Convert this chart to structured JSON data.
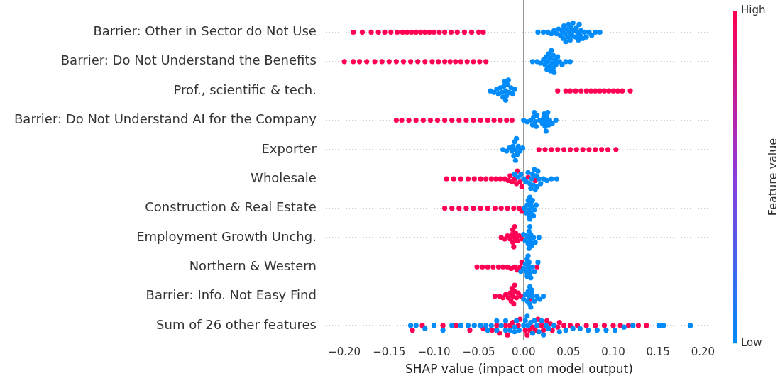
{
  "chart_data": {
    "type": "scatter",
    "orientation": "horizontal",
    "xlabel": "SHAP value (impact on model output)",
    "clabel": "Feature value",
    "clim": [
      0,
      1
    ],
    "cticks": [
      {
        "value": 0,
        "label": "Low"
      },
      {
        "value": 1,
        "label": "High"
      }
    ],
    "categories": [
      "Barrier: Other in Sector do Not Use",
      "Barrier: Do Not Understand the Benefits",
      "Prof., scientific & tech.",
      "Barrier: Do Not Understand AI for the Company",
      "Exporter",
      "Wholesale",
      "Construction & Real Estate",
      "Employment Growth Unchg.",
      "Northern & Western",
      "Barrier: Info. Not Easy Find",
      "Sum of 26 other features"
    ],
    "xlim": [
      -0.22,
      0.21
    ],
    "xticks": [
      {
        "value": -0.2,
        "label": "−0.20"
      },
      {
        "value": -0.15,
        "label": "−0.15"
      },
      {
        "value": -0.1,
        "label": "−0.10"
      },
      {
        "value": -0.05,
        "label": "−0.05"
      },
      {
        "value": 0,
        "label": "0.00"
      },
      {
        "value": 0.05,
        "label": "0.05"
      },
      {
        "value": 0.1,
        "label": "0.10"
      },
      {
        "value": 0.15,
        "label": "0.15"
      },
      {
        "value": 0.2,
        "label": "0.20"
      }
    ],
    "grid": "y",
    "marker": "circle",
    "ref_lines": [
      {
        "axis": "x",
        "value": 0,
        "color": "#999999"
      }
    ],
    "series": [
      {
        "color": "#ff0052",
        "x": [
          "Barrier: Other in Sector do Not Use",
          "Barrier: Other in Sector do Not Use",
          "Barrier: Other in Sector do Not Use",
          "Barrier: Other in Sector do Not Use",
          "Barrier: Other in Sector do Not Use",
          "Barrier: Other in Sector do Not Use",
          "Barrier: Other in Sector do Not Use",
          "Barrier: Other in Sector do Not Use",
          "Barrier: Other in Sector do Not Use",
          "Barrier: Other in Sector do Not Use",
          "Barrier: Other in Sector do Not Use",
          "Barrier: Other in Sector do Not Use",
          "Barrier: Other in Sector do Not Use",
          "Barrier: Other in Sector do Not Use",
          "Barrier: Other in Sector do Not Use",
          "Barrier: Other in Sector do Not Use",
          "Barrier: Other in Sector do Not Use",
          "Barrier: Other in Sector do Not Use",
          "Barrier: Other in Sector do Not Use",
          "Barrier: Other in Sector do Not Use",
          "Barrier: Other in Sector do Not Use",
          "Barrier: Other in Sector do Not Use",
          "Barrier: Other in Sector do Not Use",
          "Barrier: Do Not Understand the Benefits",
          "Barrier: Do Not Understand the Benefits",
          "Barrier: Do Not Understand the Benefits",
          "Barrier: Do Not Understand the Benefits",
          "Barrier: Do Not Understand the Benefits",
          "Barrier: Do Not Understand the Benefits",
          "Barrier: Do Not Understand the Benefits",
          "Barrier: Do Not Understand the Benefits",
          "Barrier: Do Not Understand the Benefits",
          "Barrier: Do Not Understand the Benefits",
          "Barrier: Do Not Understand the Benefits",
          "Barrier: Do Not Understand the Benefits",
          "Barrier: Do Not Understand the Benefits",
          "Barrier: Do Not Understand the Benefits",
          "Barrier: Do Not Understand the Benefits",
          "Barrier: Do Not Understand the Benefits",
          "Barrier: Do Not Understand the Benefits",
          "Barrier: Do Not Understand the Benefits",
          "Barrier: Do Not Understand the Benefits",
          "Barrier: Do Not Understand the Benefits",
          "Barrier: Do Not Understand the Benefits",
          "Barrier: Do Not Understand the Benefits",
          "Prof., scientific & tech.",
          "Prof., scientific & tech.",
          "Prof., scientific & tech.",
          "Prof., scientific & tech.",
          "Prof., scientific & tech.",
          "Prof., scientific & tech.",
          "Prof., scientific & tech.",
          "Prof., scientific & tech.",
          "Prof., scientific & tech.",
          "Prof., scientific & tech.",
          "Prof., scientific & tech.",
          "Prof., scientific & tech.",
          "Prof., scientific & tech.",
          "Prof., scientific & tech.",
          "Prof., scientific & tech.",
          "Barrier: Do Not Understand AI for the Company",
          "Barrier: Do Not Understand AI for the Company",
          "Barrier: Do Not Understand AI for the Company",
          "Barrier: Do Not Understand AI for the Company",
          "Barrier: Do Not Understand AI for the Company",
          "Barrier: Do Not Understand AI for the Company",
          "Barrier: Do Not Understand AI for the Company",
          "Barrier: Do Not Understand AI for the Company",
          "Barrier: Do Not Understand AI for the Company",
          "Barrier: Do Not Understand AI for the Company",
          "Barrier: Do Not Understand AI for the Company",
          "Barrier: Do Not Understand AI for the Company",
          "Barrier: Do Not Understand AI for the Company",
          "Barrier: Do Not Understand AI for the Company",
          "Barrier: Do Not Understand AI for the Company",
          "Barrier: Do Not Understand AI for the Company",
          "Barrier: Do Not Understand AI for the Company",
          "Barrier: Do Not Understand AI for the Company",
          "Exporter",
          "Exporter",
          "Exporter",
          "Exporter",
          "Exporter",
          "Exporter",
          "Exporter",
          "Exporter",
          "Exporter",
          "Exporter",
          "Exporter",
          "Exporter",
          "Exporter",
          "Wholesale",
          "Wholesale",
          "Wholesale",
          "Wholesale",
          "Wholesale",
          "Wholesale",
          "Wholesale",
          "Wholesale",
          "Wholesale",
          "Wholesale",
          "Wholesale",
          "Wholesale",
          "Wholesale",
          "Wholesale",
          "Wholesale",
          "Wholesale",
          "Wholesale",
          "Wholesale",
          "Wholesale",
          "Wholesale",
          "Wholesale",
          "Construction & Real Estate",
          "Construction & Real Estate",
          "Construction & Real Estate",
          "Construction & Real Estate",
          "Construction & Real Estate",
          "Construction & Real Estate",
          "Construction & Real Estate",
          "Construction & Real Estate",
          "Construction & Real Estate",
          "Construction & Real Estate",
          "Construction & Real Estate",
          "Construction & Real Estate",
          "Construction & Real Estate",
          "Employment Growth Unchg.",
          "Employment Growth Unchg.",
          "Employment Growth Unchg.",
          "Employment Growth Unchg.",
          "Employment Growth Unchg.",
          "Employment Growth Unchg.",
          "Employment Growth Unchg.",
          "Employment Growth Unchg.",
          "Employment Growth Unchg.",
          "Employment Growth Unchg.",
          "Employment Growth Unchg.",
          "Employment Growth Unchg.",
          "Employment Growth Unchg.",
          "Employment Growth Unchg.",
          "Northern & Western",
          "Northern & Western",
          "Northern & Western",
          "Northern & Western",
          "Northern & Western",
          "Northern & Western",
          "Northern & Western",
          "Northern & Western",
          "Northern & Western",
          "Northern & Western",
          "Northern & Western",
          "Northern & Western",
          "Northern & Western",
          "Barrier: Info. Not Easy Find",
          "Barrier: Info. Not Easy Find",
          "Barrier: Info. Not Easy Find",
          "Barrier: Info. Not Easy Find",
          "Barrier: Info. Not Easy Find",
          "Barrier: Info. Not Easy Find",
          "Barrier: Info. Not Easy Find",
          "Barrier: Info. Not Easy Find",
          "Barrier: Info. Not Easy Find",
          "Barrier: Info. Not Easy Find",
          "Barrier: Info. Not Easy Find",
          "Barrier: Info. Not Easy Find",
          "Barrier: Info. Not Easy Find",
          "Barrier: Info. Not Easy Find",
          "Barrier: Info. Not Easy Find",
          "Barrier: Info. Not Easy Find",
          "Sum of 26 other features",
          "Sum of 26 other features",
          "Sum of 26 other features",
          "Sum of 26 other features",
          "Sum of 26 other features",
          "Sum of 26 other features",
          "Sum of 26 other features",
          "Sum of 26 other features",
          "Sum of 26 other features",
          "Sum of 26 other features",
          "Sum of 26 other features",
          "Sum of 26 other features",
          "Sum of 26 other features",
          "Sum of 26 other features",
          "Sum of 26 other features",
          "Sum of 26 other features",
          "Sum of 26 other features",
          "Sum of 26 other features",
          "Sum of 26 other features",
          "Sum of 26 other features",
          "Sum of 26 other features",
          "Sum of 26 other features",
          "Sum of 26 other features",
          "Sum of 26 other features",
          "Sum of 26 other features",
          "Sum of 26 other features",
          "Sum of 26 other features",
          "Sum of 26 other features",
          "Sum of 26 other features",
          "Sum of 26 other features",
          "Sum of 26 other features",
          "Sum of 26 other features",
          "Sum of 26 other features",
          "Sum of 26 other features",
          "Sum of 26 other features",
          "Sum of 26 other features",
          "Sum of 26 other features",
          "Sum of 26 other features",
          "Sum of 26 other features"
        ],
        "values": [
          -0.19,
          -0.18,
          -0.17,
          -0.162,
          -0.155,
          -0.148,
          -0.141,
          -0.135,
          -0.13,
          -0.125,
          -0.12,
          -0.115,
          -0.11,
          -0.105,
          -0.1,
          -0.094,
          -0.088,
          -0.081,
          -0.074,
          -0.066,
          -0.058,
          -0.05,
          -0.045,
          -0.2,
          -0.19,
          -0.183,
          -0.175,
          -0.166,
          -0.158,
          -0.15,
          -0.142,
          -0.134,
          -0.126,
          -0.118,
          -0.11,
          -0.102,
          -0.095,
          -0.088,
          -0.082,
          -0.076,
          -0.07,
          -0.063,
          -0.056,
          -0.049,
          -0.042,
          0.038,
          0.047,
          0.052,
          0.058,
          0.064,
          0.07,
          0.075,
          0.08,
          0.085,
          0.09,
          0.095,
          0.1,
          0.105,
          0.11,
          0.119,
          -0.142,
          -0.136,
          -0.128,
          -0.12,
          -0.112,
          -0.104,
          -0.096,
          -0.088,
          -0.08,
          -0.072,
          -0.064,
          -0.056,
          -0.048,
          -0.04,
          -0.033,
          -0.026,
          -0.019,
          -0.013,
          0.017,
          0.024,
          0.031,
          0.038,
          0.045,
          0.052,
          0.059,
          0.066,
          0.073,
          0.08,
          0.087,
          0.094,
          0.103,
          -0.086,
          -0.078,
          -0.07,
          -0.062,
          -0.055,
          -0.048,
          -0.042,
          -0.036,
          -0.031,
          -0.026,
          -0.021,
          -0.017,
          -0.013,
          -0.01,
          -0.007,
          -0.004,
          -0.002,
          -0.015,
          -0.008,
          0.005,
          0.013,
          -0.088,
          -0.08,
          -0.072,
          -0.064,
          -0.056,
          -0.048,
          -0.04,
          -0.032,
          -0.025,
          -0.018,
          -0.011,
          -0.005,
          -0.002,
          -0.025,
          -0.021,
          -0.018,
          -0.015,
          -0.013,
          -0.012,
          -0.011,
          -0.01,
          -0.009,
          -0.007,
          -0.005,
          -0.002,
          -0.012,
          -0.01,
          -0.052,
          -0.046,
          -0.04,
          -0.034,
          -0.028,
          -0.023,
          -0.018,
          -0.014,
          -0.01,
          -0.007,
          -0.004,
          -0.002,
          0.015,
          -0.032,
          -0.027,
          -0.023,
          -0.02,
          -0.017,
          -0.015,
          -0.013,
          -0.012,
          -0.011,
          -0.01,
          -0.008,
          -0.006,
          -0.003,
          -0.014,
          -0.01,
          0.008,
          -0.124,
          -0.113,
          -0.09,
          -0.075,
          -0.06,
          -0.045,
          -0.035,
          -0.027,
          -0.018,
          -0.012,
          -0.006,
          0.002,
          0.007,
          0.013,
          0.02,
          0.026,
          0.032,
          0.038,
          0.045,
          0.052,
          0.06,
          0.07,
          0.08,
          0.09,
          0.1,
          0.108,
          0.117,
          0.128,
          0.137,
          -0.02,
          0.01,
          0.03,
          -0.03,
          -0.015,
          -0.004,
          0.004,
          0.016,
          0.022,
          0.04
        ]
      },
      {
        "color": "#008bfb",
        "x": [
          "Barrier: Other in Sector do Not Use",
          "Barrier: Other in Sector do Not Use",
          "Barrier: Other in Sector do Not Use",
          "Barrier: Other in Sector do Not Use",
          "Barrier: Other in Sector do Not Use",
          "Barrier: Other in Sector do Not Use",
          "Barrier: Other in Sector do Not Use",
          "Barrier: Other in Sector do Not Use",
          "Barrier: Other in Sector do Not Use",
          "Barrier: Other in Sector do Not Use",
          "Barrier: Other in Sector do Not Use",
          "Barrier: Other in Sector do Not Use",
          "Barrier: Other in Sector do Not Use",
          "Barrier: Other in Sector do Not Use",
          "Barrier: Other in Sector do Not Use",
          "Barrier: Other in Sector do Not Use",
          "Barrier: Other in Sector do Not Use",
          "Barrier: Other in Sector do Not Use",
          "Barrier: Other in Sector do Not Use",
          "Barrier: Other in Sector do Not Use",
          "Barrier: Other in Sector do Not Use",
          "Barrier: Other in Sector do Not Use",
          "Barrier: Other in Sector do Not Use",
          "Barrier: Other in Sector do Not Use",
          "Barrier: Other in Sector do Not Use",
          "Barrier: Other in Sector do Not Use",
          "Barrier: Other in Sector do Not Use",
          "Barrier: Other in Sector do Not Use",
          "Barrier: Other in Sector do Not Use",
          "Barrier: Other in Sector do Not Use",
          "Barrier: Other in Sector do Not Use",
          "Barrier: Other in Sector do Not Use",
          "Barrier: Other in Sector do Not Use",
          "Barrier: Other in Sector do Not Use",
          "Barrier: Other in Sector do Not Use",
          "Barrier: Other in Sector do Not Use",
          "Barrier: Do Not Understand the Benefits",
          "Barrier: Do Not Understand the Benefits",
          "Barrier: Do Not Understand the Benefits",
          "Barrier: Do Not Understand the Benefits",
          "Barrier: Do Not Understand the Benefits",
          "Barrier: Do Not Understand the Benefits",
          "Barrier: Do Not Understand the Benefits",
          "Barrier: Do Not Understand the Benefits",
          "Barrier: Do Not Understand the Benefits",
          "Barrier: Do Not Understand the Benefits",
          "Barrier: Do Not Understand the Benefits",
          "Barrier: Do Not Understand the Benefits",
          "Barrier: Do Not Understand the Benefits",
          "Barrier: Do Not Understand the Benefits",
          "Barrier: Do Not Understand the Benefits",
          "Barrier: Do Not Understand the Benefits",
          "Barrier: Do Not Understand the Benefits",
          "Barrier: Do Not Understand the Benefits",
          "Barrier: Do Not Understand the Benefits",
          "Barrier: Do Not Understand the Benefits",
          "Barrier: Do Not Understand the Benefits",
          "Barrier: Do Not Understand the Benefits",
          "Barrier: Do Not Understand the Benefits",
          "Barrier: Do Not Understand the Benefits",
          "Prof., scientific & tech.",
          "Prof., scientific & tech.",
          "Prof., scientific & tech.",
          "Prof., scientific & tech.",
          "Prof., scientific & tech.",
          "Prof., scientific & tech.",
          "Prof., scientific & tech.",
          "Prof., scientific & tech.",
          "Prof., scientific & tech.",
          "Prof., scientific & tech.",
          "Prof., scientific & tech.",
          "Prof., scientific & tech.",
          "Prof., scientific & tech.",
          "Prof., scientific & tech.",
          "Prof., scientific & tech.",
          "Prof., scientific & tech.",
          "Prof., scientific & tech.",
          "Prof., scientific & tech.",
          "Barrier: Do Not Understand AI for the Company",
          "Barrier: Do Not Understand AI for the Company",
          "Barrier: Do Not Understand AI for the Company",
          "Barrier: Do Not Understand AI for the Company",
          "Barrier: Do Not Understand AI for the Company",
          "Barrier: Do Not Understand AI for the Company",
          "Barrier: Do Not Understand AI for the Company",
          "Barrier: Do Not Understand AI for the Company",
          "Barrier: Do Not Understand AI for the Company",
          "Barrier: Do Not Understand AI for the Company",
          "Barrier: Do Not Understand AI for the Company",
          "Barrier: Do Not Understand AI for the Company",
          "Barrier: Do Not Understand AI for the Company",
          "Barrier: Do Not Understand AI for the Company",
          "Barrier: Do Not Understand AI for the Company",
          "Barrier: Do Not Understand AI for the Company",
          "Barrier: Do Not Understand AI for the Company",
          "Barrier: Do Not Understand AI for the Company",
          "Barrier: Do Not Understand AI for the Company",
          "Barrier: Do Not Understand AI for the Company",
          "Barrier: Do Not Understand AI for the Company",
          "Barrier: Do Not Understand AI for the Company",
          "Exporter",
          "Exporter",
          "Exporter",
          "Exporter",
          "Exporter",
          "Exporter",
          "Exporter",
          "Exporter",
          "Exporter",
          "Exporter",
          "Exporter",
          "Exporter",
          "Exporter",
          "Exporter",
          "Wholesale",
          "Wholesale",
          "Wholesale",
          "Wholesale",
          "Wholesale",
          "Wholesale",
          "Wholesale",
          "Wholesale",
          "Wholesale",
          "Wholesale",
          "Wholesale",
          "Wholesale",
          "Wholesale",
          "Wholesale",
          "Wholesale",
          "Wholesale",
          "Wholesale",
          "Wholesale",
          "Wholesale",
          "Wholesale",
          "Wholesale",
          "Wholesale",
          "Construction & Real Estate",
          "Construction & Real Estate",
          "Construction & Real Estate",
          "Construction & Real Estate",
          "Construction & Real Estate",
          "Construction & Real Estate",
          "Construction & Real Estate",
          "Construction & Real Estate",
          "Construction & Real Estate",
          "Construction & Real Estate",
          "Construction & Real Estate",
          "Construction & Real Estate",
          "Construction & Real Estate",
          "Construction & Real Estate",
          "Construction & Real Estate",
          "Employment Growth Unchg.",
          "Employment Growth Unchg.",
          "Employment Growth Unchg.",
          "Employment Growth Unchg.",
          "Employment Growth Unchg.",
          "Employment Growth Unchg.",
          "Employment Growth Unchg.",
          "Employment Growth Unchg.",
          "Employment Growth Unchg.",
          "Employment Growth Unchg.",
          "Employment Growth Unchg.",
          "Employment Growth Unchg.",
          "Employment Growth Unchg.",
          "Employment Growth Unchg.",
          "Northern & Western",
          "Northern & Western",
          "Northern & Western",
          "Northern & Western",
          "Northern & Western",
          "Northern & Western",
          "Northern & Western",
          "Northern & Western",
          "Northern & Western",
          "Northern & Western",
          "Northern & Western",
          "Northern & Western",
          "Northern & Western",
          "Northern & Western",
          "Northern & Western",
          "Barrier: Info. Not Easy Find",
          "Barrier: Info. Not Easy Find",
          "Barrier: Info. Not Easy Find",
          "Barrier: Info. Not Easy Find",
          "Barrier: Info. Not Easy Find",
          "Barrier: Info. Not Easy Find",
          "Barrier: Info. Not Easy Find",
          "Barrier: Info. Not Easy Find",
          "Barrier: Info. Not Easy Find",
          "Barrier: Info. Not Easy Find",
          "Barrier: Info. Not Easy Find",
          "Barrier: Info. Not Easy Find",
          "Barrier: Info. Not Easy Find",
          "Barrier: Info. Not Easy Find",
          "Barrier: Info. Not Easy Find",
          "Sum of 26 other features",
          "Sum of 26 other features",
          "Sum of 26 other features",
          "Sum of 26 other features",
          "Sum of 26 other features",
          "Sum of 26 other features",
          "Sum of 26 other features",
          "Sum of 26 other features",
          "Sum of 26 other features",
          "Sum of 26 other features",
          "Sum of 26 other features",
          "Sum of 26 other features",
          "Sum of 26 other features",
          "Sum of 26 other features",
          "Sum of 26 other features",
          "Sum of 26 other features",
          "Sum of 26 other features",
          "Sum of 26 other features",
          "Sum of 26 other features",
          "Sum of 26 other features",
          "Sum of 26 other features",
          "Sum of 26 other features",
          "Sum of 26 other features",
          "Sum of 26 other features",
          "Sum of 26 other features",
          "Sum of 26 other features",
          "Sum of 26 other features",
          "Sum of 26 other features",
          "Sum of 26 other features",
          "Sum of 26 other features",
          "Sum of 26 other features",
          "Sum of 26 other features",
          "Sum of 26 other features",
          "Sum of 26 other features",
          "Sum of 26 other features",
          "Sum of 26 other features",
          "Sum of 26 other features",
          "Sum of 26 other features",
          "Sum of 26 other features",
          "Sum of 26 other features",
          "Sum of 26 other features",
          "Sum of 26 other features",
          "Sum of 26 other features",
          "Sum of 26 other features",
          "Sum of 26 other features",
          "Sum of 26 other features",
          "Sum of 26 other features",
          "Sum of 26 other features",
          "Sum of 26 other features",
          "Sum of 26 other features"
        ],
        "values": [
          0.016,
          0.022,
          0.027,
          0.031,
          0.034,
          0.037,
          0.039,
          0.041,
          0.043,
          0.045,
          0.047,
          0.049,
          0.05,
          0.052,
          0.054,
          0.056,
          0.058,
          0.06,
          0.062,
          0.064,
          0.066,
          0.068,
          0.07,
          0.073,
          0.076,
          0.08,
          0.085,
          0.044,
          0.048,
          0.051,
          0.055,
          0.059,
          0.063,
          0.046,
          0.053,
          0.061,
          0.01,
          0.015,
          0.019,
          0.022,
          0.024,
          0.026,
          0.028,
          0.029,
          0.03,
          0.031,
          0.032,
          0.033,
          0.034,
          0.036,
          0.038,
          0.04,
          0.043,
          0.047,
          0.052,
          0.027,
          0.03,
          0.033,
          0.025,
          0.035,
          -0.037,
          -0.033,
          -0.03,
          -0.028,
          -0.026,
          -0.024,
          -0.022,
          -0.021,
          -0.02,
          -0.019,
          -0.018,
          -0.016,
          -0.014,
          -0.012,
          -0.01,
          -0.023,
          -0.02,
          -0.017,
          0.0,
          0.004,
          0.008,
          0.01,
          0.012,
          0.013,
          0.015,
          0.018,
          0.021,
          0.023,
          0.024,
          0.025,
          0.026,
          0.027,
          0.029,
          0.032,
          0.036,
          0.011,
          0.014,
          0.022,
          0.025,
          0.028,
          -0.023,
          -0.019,
          -0.016,
          -0.013,
          -0.011,
          -0.01,
          -0.009,
          -0.008,
          -0.006,
          -0.004,
          -0.001,
          -0.012,
          -0.009,
          -0.007,
          -0.01,
          -0.006,
          -0.003,
          0.0,
          0.003,
          0.005,
          0.007,
          0.009,
          0.011,
          0.012,
          0.013,
          0.015,
          0.017,
          0.019,
          0.022,
          0.026,
          0.031,
          0.037,
          0.01,
          0.014,
          0.008,
          0.016,
          0.001,
          0.003,
          0.005,
          0.006,
          0.007,
          0.008,
          0.009,
          0.01,
          0.012,
          0.014,
          0.006,
          0.008,
          0.007,
          0.004,
          0.011,
          0.0,
          0.002,
          0.004,
          0.005,
          0.006,
          0.007,
          0.008,
          0.009,
          0.011,
          0.013,
          0.017,
          0.006,
          0.008,
          0.007,
          -0.003,
          0.0,
          0.002,
          0.003,
          0.004,
          0.005,
          0.006,
          0.007,
          0.008,
          0.01,
          0.012,
          0.016,
          0.005,
          0.004,
          0.006,
          0.0,
          0.002,
          0.004,
          0.006,
          0.007,
          0.008,
          0.009,
          0.01,
          0.012,
          0.015,
          0.018,
          0.022,
          0.007,
          0.005,
          0.009,
          -0.126,
          -0.12,
          -0.11,
          -0.1,
          -0.09,
          -0.08,
          -0.07,
          -0.062,
          -0.055,
          -0.048,
          -0.042,
          -0.036,
          -0.03,
          -0.025,
          -0.02,
          -0.015,
          -0.01,
          -0.005,
          0.0,
          0.004,
          0.008,
          0.012,
          0.017,
          0.022,
          0.028,
          0.034,
          0.04,
          0.047,
          0.055,
          0.063,
          0.072,
          0.082,
          0.092,
          0.102,
          0.112,
          0.122,
          0.151,
          0.156,
          0.186,
          -0.03,
          -0.01,
          0.005,
          0.015,
          -0.04,
          -0.02,
          -0.008,
          0.002,
          0.01,
          0.02,
          0.025
        ]
      }
    ]
  }
}
